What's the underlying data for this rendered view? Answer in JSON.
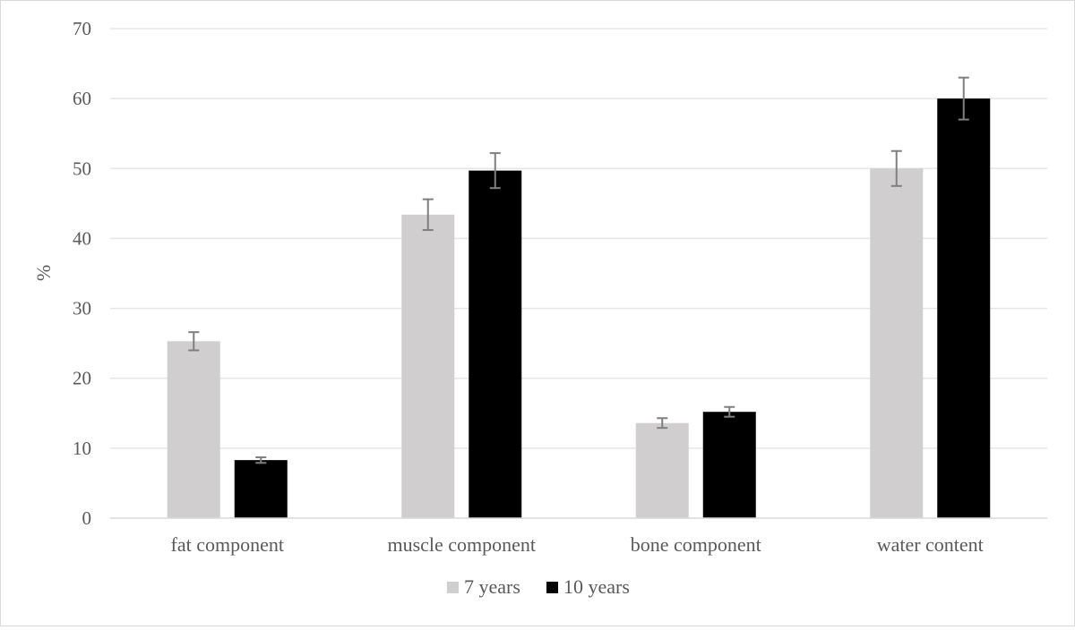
{
  "chart_data": {
    "type": "bar",
    "title": "",
    "xlabel": "",
    "ylabel": "%",
    "ylim": [
      0,
      70
    ],
    "yticks": [
      0,
      10,
      20,
      30,
      40,
      50,
      60,
      70
    ],
    "grid": true,
    "legend_position": "bottom",
    "categories": [
      "fat component",
      "muscle component",
      "bone component",
      "water content"
    ],
    "series": [
      {
        "name": "7 years",
        "color": "#d0cece",
        "values": [
          25.3,
          43.4,
          13.6,
          50.0
        ],
        "error": [
          1.3,
          2.2,
          0.7,
          2.5
        ]
      },
      {
        "name": "10 years",
        "color": "#000000",
        "values": [
          8.3,
          49.7,
          15.2,
          60.0
        ],
        "error": [
          0.4,
          2.5,
          0.7,
          3.0
        ]
      }
    ]
  },
  "colors": {
    "grid": "#e6e6e6",
    "axis": "#d9d9d9",
    "error_bar": "#7f7f7f",
    "text": "#595959"
  }
}
